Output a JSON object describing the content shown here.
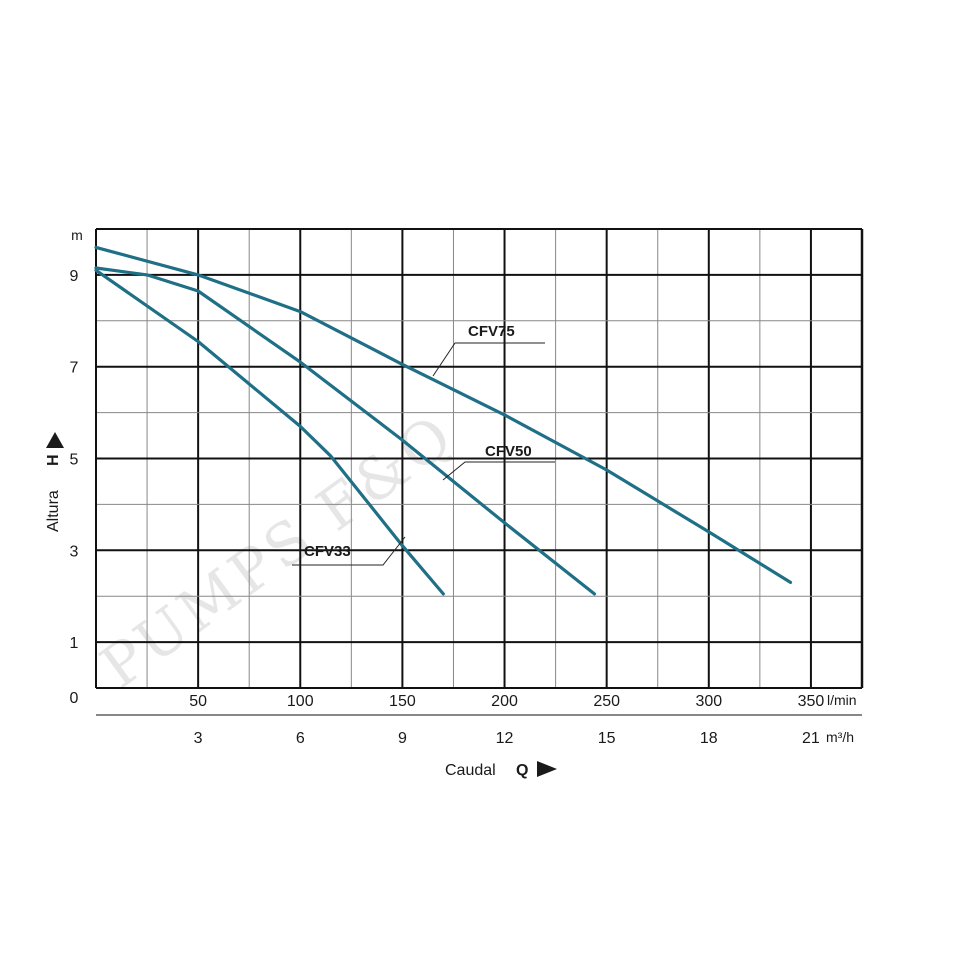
{
  "chart_data": {
    "type": "line",
    "watermark": "PUMPS F&Q",
    "y_axis": {
      "unit": "m",
      "ticks": [
        0,
        1,
        3,
        5,
        7,
        9
      ],
      "label": "Altura",
      "symbol": "H",
      "range": [
        0,
        10
      ]
    },
    "x_axis_primary": {
      "unit": "l/min",
      "ticks": [
        50,
        100,
        150,
        200,
        250,
        300,
        350
      ],
      "range": [
        0,
        375
      ]
    },
    "x_axis_secondary": {
      "unit": "m³/h",
      "ticks": [
        3,
        6,
        9,
        12,
        15,
        18,
        21
      ]
    },
    "x_label": "Caudal",
    "x_symbol": "Q",
    "series": [
      {
        "name": "CFV75",
        "color": "#1f6f86",
        "points": [
          [
            0,
            9.6
          ],
          [
            50,
            9.0
          ],
          [
            100,
            8.2
          ],
          [
            150,
            7.05
          ],
          [
            200,
            5.95
          ],
          [
            250,
            4.75
          ],
          [
            300,
            3.4
          ],
          [
            340,
            2.3
          ]
        ]
      },
      {
        "name": "CFV50",
        "color": "#1f6f86",
        "points": [
          [
            0,
            9.15
          ],
          [
            25,
            9.0
          ],
          [
            50,
            8.65
          ],
          [
            100,
            7.1
          ],
          [
            150,
            5.4
          ],
          [
            200,
            3.6
          ],
          [
            244,
            2.05
          ]
        ]
      },
      {
        "name": "CFV33",
        "color": "#1f6f86",
        "points": [
          [
            0,
            9.1
          ],
          [
            50,
            7.55
          ],
          [
            100,
            5.7
          ],
          [
            115,
            5.05
          ],
          [
            150,
            3.1
          ],
          [
            170,
            2.05
          ]
        ]
      }
    ]
  }
}
